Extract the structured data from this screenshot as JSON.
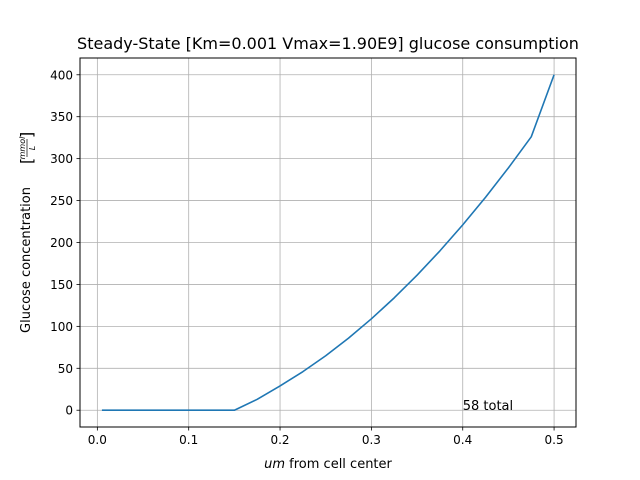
{
  "chart_data": {
    "type": "line",
    "title": "Steady-State [Km=0.001 Vmax=1.90E9] glucose consumption",
    "xlabel_italic": "um",
    "xlabel_rest": " from cell center",
    "ylabel": "Glucose concentration",
    "ylabel_unit_numerator": "mmol",
    "ylabel_unit_denominator": "L",
    "xlim": [
      -0.019,
      0.524
    ],
    "ylim": [
      -20,
      420
    ],
    "xticks": [
      0.0,
      0.1,
      0.2,
      0.3,
      0.4,
      0.5
    ],
    "xtick_labels": [
      "0.0",
      "0.1",
      "0.2",
      "0.3",
      "0.4",
      "0.5"
    ],
    "yticks": [
      0,
      50,
      100,
      150,
      200,
      250,
      300,
      350,
      400
    ],
    "ytick_labels": [
      "0",
      "50",
      "100",
      "150",
      "200",
      "250",
      "300",
      "350",
      "400"
    ],
    "grid": true,
    "series": [
      {
        "color": "#1f77b4",
        "x": [
          0.005,
          0.05,
          0.1,
          0.15,
          0.175,
          0.2,
          0.225,
          0.25,
          0.275,
          0.3,
          0.325,
          0.35,
          0.375,
          0.4,
          0.425,
          0.45,
          0.475,
          0.5
        ],
        "y": [
          0,
          0,
          0,
          0,
          13,
          29,
          46,
          65,
          86,
          109,
          134,
          161,
          190,
          221,
          254,
          289,
          326,
          400
        ]
      }
    ],
    "annotation": {
      "text": "58 total",
      "x": 0.4,
      "y": 0
    }
  }
}
